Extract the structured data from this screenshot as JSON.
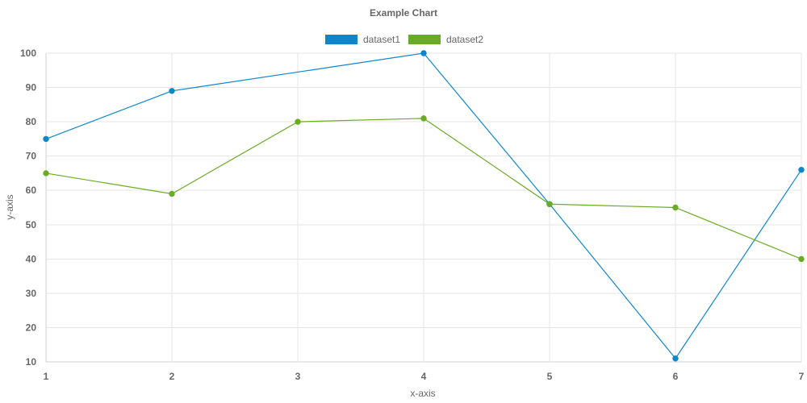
{
  "chart_data": {
    "type": "line",
    "title": "Example Chart",
    "xlabel": "x-axis",
    "ylabel": "y-axis",
    "categories": [
      "1",
      "2",
      "3",
      "4",
      "5",
      "6",
      "7"
    ],
    "x": [
      1,
      2,
      3,
      4,
      5,
      6,
      7
    ],
    "xlim": [
      1,
      7
    ],
    "ylim": [
      10,
      100
    ],
    "yticks": [
      10,
      20,
      30,
      40,
      50,
      60,
      70,
      80,
      90,
      100
    ],
    "grid": true,
    "legend": {
      "position": "top"
    },
    "series": [
      {
        "name": "dataset1",
        "color": "#0e86cc",
        "values": [
          75,
          89,
          null,
          100,
          56,
          11,
          66
        ]
      },
      {
        "name": "dataset2",
        "color": "#6aab25",
        "values": [
          65,
          59,
          80,
          81,
          56,
          55,
          40
        ]
      }
    ]
  }
}
